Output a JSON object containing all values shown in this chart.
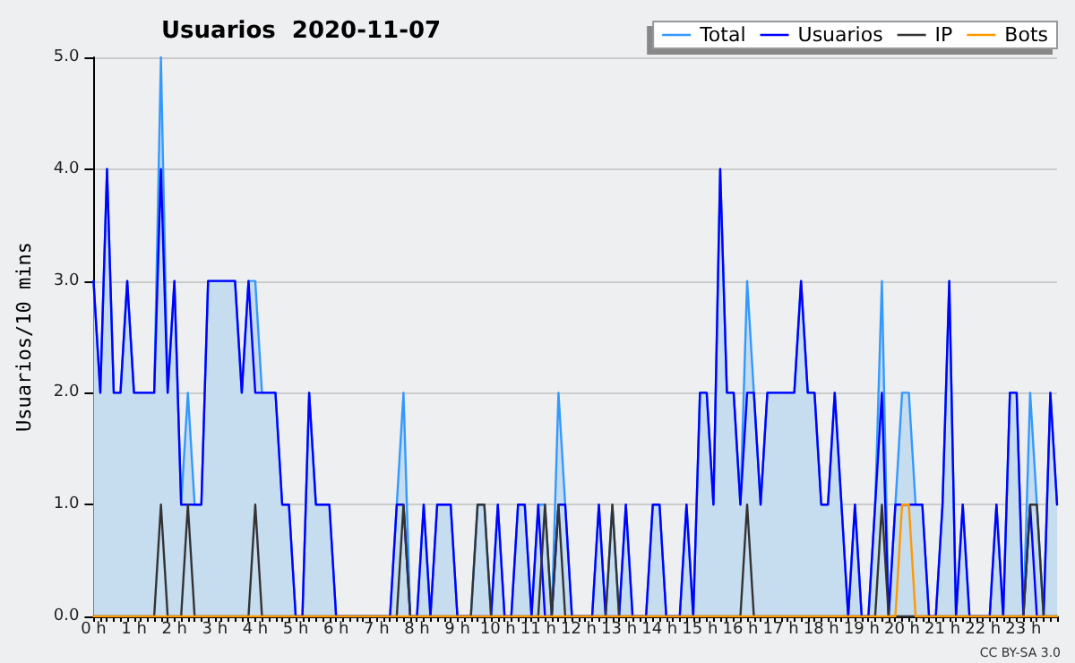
{
  "chart_data": {
    "type": "line",
    "title": "Usuarios  2020-11-07",
    "ylabel": "Usuarios/10 mins",
    "annotations": [
      "CC BY-SA 3.0"
    ],
    "categories": [
      "0 h",
      null,
      null,
      null,
      null,
      null,
      "1 h",
      null,
      null,
      null,
      null,
      null,
      "2 h",
      null,
      null,
      null,
      null,
      null,
      "3 h",
      null,
      null,
      null,
      null,
      null,
      "4 h",
      null,
      null,
      null,
      null,
      null,
      "5 h",
      null,
      null,
      null,
      null,
      null,
      "6 h",
      null,
      null,
      null,
      null,
      null,
      "7 h",
      null,
      null,
      null,
      null,
      null,
      "8 h",
      null,
      null,
      null,
      null,
      null,
      "9 h",
      null,
      null,
      null,
      null,
      null,
      "10 h",
      null,
      null,
      null,
      null,
      null,
      "11 h",
      null,
      null,
      null,
      null,
      null,
      "12 h",
      null,
      null,
      null,
      null,
      null,
      "13 h",
      null,
      null,
      null,
      null,
      null,
      "14 h",
      null,
      null,
      null,
      null,
      null,
      "15 h",
      null,
      null,
      null,
      null,
      null,
      "16 h",
      null,
      null,
      null,
      null,
      null,
      "17 h",
      null,
      null,
      null,
      null,
      null,
      "18 h",
      null,
      null,
      null,
      null,
      null,
      "19 h",
      null,
      null,
      null,
      null,
      null,
      "20 h",
      null,
      null,
      null,
      null,
      null,
      "21 h",
      null,
      null,
      null,
      null,
      null,
      "22 h",
      null,
      null,
      null,
      null,
      null,
      "23 h",
      null,
      null,
      null,
      null,
      null
    ],
    "series": [
      {
        "name": "Total",
        "type": "area",
        "color": "#3399ff",
        "values": [
          3,
          2,
          4,
          2,
          2,
          3,
          2,
          2,
          2,
          2,
          5,
          2,
          3,
          1,
          2,
          1,
          1,
          3,
          3,
          3,
          3,
          3,
          2,
          3,
          3,
          2,
          2,
          2,
          1,
          1,
          0,
          0,
          2,
          1,
          1,
          1,
          0,
          0,
          0,
          0,
          0,
          0,
          0,
          0,
          0,
          1,
          2,
          0,
          0,
          1,
          0,
          1,
          1,
          1,
          0,
          0,
          0,
          1,
          1,
          0,
          1,
          0,
          0,
          1,
          1,
          0,
          1,
          1,
          0,
          2,
          1,
          0,
          0,
          0,
          0,
          1,
          0,
          1,
          0,
          1,
          0,
          0,
          0,
          1,
          1,
          0,
          0,
          0,
          1,
          0,
          2,
          2,
          1,
          4,
          2,
          2,
          1,
          3,
          2,
          1,
          2,
          2,
          2,
          2,
          2,
          3,
          2,
          2,
          1,
          1,
          2,
          1,
          0,
          1,
          0,
          0,
          1,
          3,
          0,
          1,
          2,
          2,
          1,
          1,
          0,
          0,
          1,
          3,
          0,
          1,
          0,
          0,
          0,
          0,
          1,
          0,
          2,
          2,
          0,
          2,
          1,
          0,
          2,
          1
        ]
      },
      {
        "name": "Usuarios",
        "color": "#0000ff",
        "values": [
          3,
          2,
          4,
          2,
          2,
          3,
          2,
          2,
          2,
          2,
          4,
          2,
          3,
          1,
          1,
          1,
          1,
          3,
          3,
          3,
          3,
          3,
          2,
          3,
          2,
          2,
          2,
          2,
          1,
          1,
          0,
          0,
          2,
          1,
          1,
          1,
          0,
          0,
          0,
          0,
          0,
          0,
          0,
          0,
          0,
          1,
          1,
          0,
          0,
          1,
          0,
          1,
          1,
          1,
          0,
          0,
          0,
          0,
          0,
          0,
          1,
          0,
          0,
          1,
          1,
          0,
          1,
          0,
          0,
          1,
          1,
          0,
          0,
          0,
          0,
          1,
          0,
          0,
          0,
          1,
          0,
          0,
          0,
          1,
          1,
          0,
          0,
          0,
          1,
          0,
          2,
          2,
          1,
          4,
          2,
          2,
          1,
          2,
          2,
          1,
          2,
          2,
          2,
          2,
          2,
          3,
          2,
          2,
          1,
          1,
          2,
          1,
          0,
          1,
          0,
          0,
          1,
          2,
          0,
          1,
          1,
          1,
          1,
          1,
          0,
          0,
          1,
          3,
          0,
          1,
          0,
          0,
          0,
          0,
          1,
          0,
          2,
          2,
          0,
          1,
          0,
          0,
          2,
          1
        ]
      },
      {
        "name": "IP",
        "color": "#333333",
        "values": [
          0,
          0,
          0,
          0,
          0,
          0,
          0,
          0,
          0,
          0,
          1,
          0,
          0,
          0,
          1,
          0,
          0,
          0,
          0,
          0,
          0,
          0,
          0,
          0,
          1,
          0,
          0,
          0,
          0,
          0,
          0,
          0,
          0,
          0,
          0,
          0,
          0,
          0,
          0,
          0,
          0,
          0,
          0,
          0,
          0,
          0,
          1,
          0,
          0,
          0,
          0,
          0,
          0,
          0,
          0,
          0,
          0,
          1,
          1,
          0,
          0,
          0,
          0,
          0,
          0,
          0,
          0,
          1,
          0,
          1,
          0,
          0,
          0,
          0,
          0,
          0,
          0,
          1,
          0,
          0,
          0,
          0,
          0,
          0,
          0,
          0,
          0,
          0,
          0,
          0,
          0,
          0,
          0,
          0,
          0,
          0,
          0,
          1,
          0,
          0,
          0,
          0,
          0,
          0,
          0,
          0,
          0,
          0,
          0,
          0,
          0,
          0,
          0,
          0,
          0,
          0,
          0,
          1,
          0,
          0,
          0,
          0,
          0,
          0,
          0,
          0,
          0,
          0,
          0,
          0,
          0,
          0,
          0,
          0,
          0,
          0,
          0,
          0,
          0,
          1,
          1,
          0,
          0,
          0
        ]
      },
      {
        "name": "Bots",
        "color": "#ff9900",
        "values": [
          0,
          0,
          0,
          0,
          0,
          0,
          0,
          0,
          0,
          0,
          0,
          0,
          0,
          0,
          0,
          0,
          0,
          0,
          0,
          0,
          0,
          0,
          0,
          0,
          0,
          0,
          0,
          0,
          0,
          0,
          0,
          0,
          0,
          0,
          0,
          0,
          0,
          0,
          0,
          0,
          0,
          0,
          0,
          0,
          0,
          0,
          0,
          0,
          0,
          0,
          0,
          0,
          0,
          0,
          0,
          0,
          0,
          0,
          0,
          0,
          0,
          0,
          0,
          0,
          0,
          0,
          0,
          0,
          0,
          0,
          0,
          0,
          0,
          0,
          0,
          0,
          0,
          0,
          0,
          0,
          0,
          0,
          0,
          0,
          0,
          0,
          0,
          0,
          0,
          0,
          0,
          0,
          0,
          0,
          0,
          0,
          0,
          0,
          0,
          0,
          0,
          0,
          0,
          0,
          0,
          0,
          0,
          0,
          0,
          0,
          0,
          0,
          0,
          0,
          0,
          0,
          0,
          0,
          0,
          0,
          1,
          1,
          0,
          0,
          0,
          0,
          0,
          0,
          0,
          0,
          0,
          0,
          0,
          0,
          0,
          0,
          0,
          0,
          0,
          0,
          0,
          0,
          0,
          0
        ]
      }
    ],
    "ylim": [
      0,
      5
    ],
    "yticks": [
      {
        "value": 0,
        "label": "0.0"
      },
      {
        "value": 1,
        "label": "1.0"
      },
      {
        "value": 2,
        "label": "2.0"
      },
      {
        "value": 3,
        "label": "3.0"
      },
      {
        "value": 4,
        "label": "4.0"
      },
      {
        "value": 5,
        "label": "5.0"
      }
    ],
    "grid": "y",
    "legend": "top right",
    "marker": "none",
    "line_style": "solid"
  }
}
